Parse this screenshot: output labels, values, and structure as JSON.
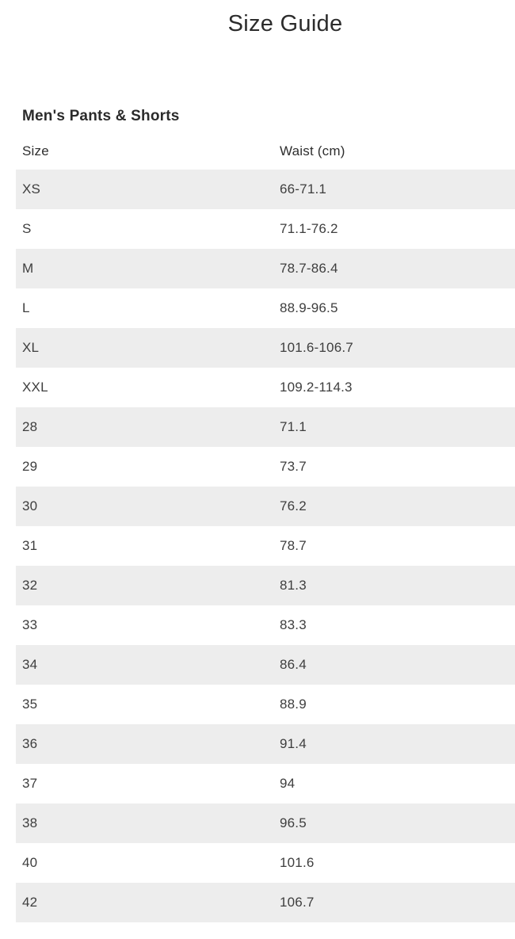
{
  "page": {
    "title": "Size Guide"
  },
  "section": {
    "heading": "Men's Pants & Shorts"
  },
  "table": {
    "columns": [
      "Size",
      "Waist (cm)"
    ],
    "rows": [
      [
        "XS",
        "66-71.1"
      ],
      [
        "S",
        "71.1-76.2"
      ],
      [
        "M",
        "78.7-86.4"
      ],
      [
        "L",
        "88.9-96.5"
      ],
      [
        "XL",
        "101.6-106.7"
      ],
      [
        "XXL",
        "109.2-114.3"
      ],
      [
        "28",
        "71.1"
      ],
      [
        "29",
        "73.7"
      ],
      [
        "30",
        "76.2"
      ],
      [
        "31",
        "78.7"
      ],
      [
        "32",
        "81.3"
      ],
      [
        "33",
        "83.3"
      ],
      [
        "34",
        "86.4"
      ],
      [
        "35",
        "88.9"
      ],
      [
        "36",
        "91.4"
      ],
      [
        "37",
        "94"
      ],
      [
        "38",
        "96.5"
      ],
      [
        "40",
        "101.6"
      ],
      [
        "42",
        "106.7"
      ]
    ]
  },
  "colors": {
    "background": "#ffffff",
    "row_stripe": "#ededed",
    "title_text": "#2c2c2c",
    "heading_text": "#2b2b2b",
    "cell_text": "#3e3e3e"
  }
}
